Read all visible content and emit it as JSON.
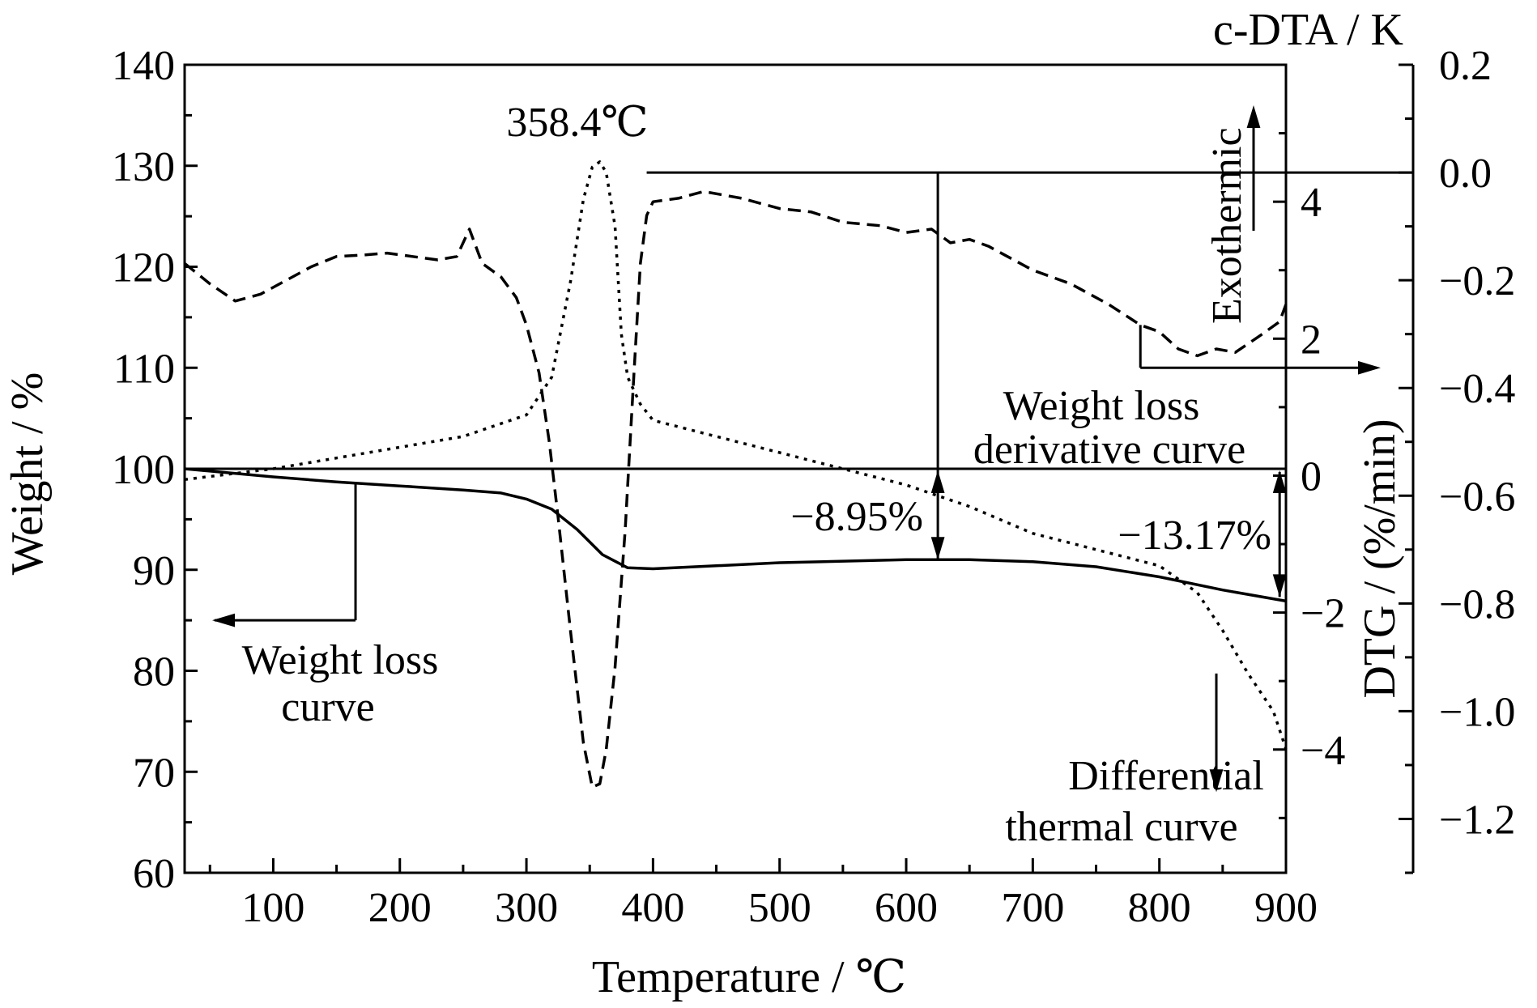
{
  "chart_data": {
    "type": "line",
    "x_axis": {
      "label": "Temperature  / ℃",
      "range": [
        30,
        900
      ],
      "ticks": [
        100,
        200,
        300,
        400,
        500,
        600,
        700,
        800,
        900
      ]
    },
    "y_axes": {
      "weight": {
        "label": "Weight / %",
        "side": "left",
        "range": [
          60,
          140
        ],
        "ticks": [
          60,
          70,
          80,
          90,
          100,
          110,
          120,
          130,
          140
        ]
      },
      "dtg": {
        "label": "DTG / (%/min)",
        "side": "right-inner",
        "range": [
          -5.8,
          6
        ],
        "ticks": [
          -4,
          -2,
          0,
          2,
          4
        ],
        "tick_labels": [
          "−4",
          "−2",
          "0",
          "2",
          "4"
        ]
      },
      "dta": {
        "label": "c-DTA / K",
        "side": "right-outer",
        "range": [
          -1.3,
          0.2
        ],
        "ticks": [
          -1.2,
          -1.0,
          -0.8,
          -0.6,
          -0.4,
          -0.2,
          0.0,
          0.2
        ],
        "tick_labels": [
          "−1.2",
          "−1.0",
          "−0.8",
          "−0.6",
          "−0.4",
          "−0.2",
          "0.0",
          "0.2"
        ]
      }
    },
    "series": [
      {
        "axis": "weight",
        "style": "solid",
        "points": [
          [
            30,
            100
          ],
          [
            100,
            99.2
          ],
          [
            150,
            98.7
          ],
          [
            200,
            98.3
          ],
          [
            250,
            97.9
          ],
          [
            280,
            97.6
          ],
          [
            300,
            97.0
          ],
          [
            320,
            96.0
          ],
          [
            340,
            94.0
          ],
          [
            360,
            91.5
          ],
          [
            380,
            90.2
          ],
          [
            400,
            90.1
          ],
          [
            450,
            90.4
          ],
          [
            500,
            90.7
          ],
          [
            600,
            91.0
          ],
          [
            650,
            91.0
          ],
          [
            700,
            90.8
          ],
          [
            750,
            90.3
          ],
          [
            800,
            89.3
          ],
          [
            850,
            88.0
          ],
          [
            900,
            86.9
          ]
        ]
      },
      {
        "axis": "dtg",
        "style": "dashed",
        "points": [
          [
            30,
            3.1
          ],
          [
            50,
            2.8
          ],
          [
            70,
            2.55
          ],
          [
            90,
            2.65
          ],
          [
            110,
            2.85
          ],
          [
            130,
            3.05
          ],
          [
            150,
            3.2
          ],
          [
            170,
            3.22
          ],
          [
            190,
            3.25
          ],
          [
            210,
            3.2
          ],
          [
            230,
            3.15
          ],
          [
            245,
            3.2
          ],
          [
            255,
            3.6
          ],
          [
            265,
            3.1
          ],
          [
            280,
            2.9
          ],
          [
            292,
            2.6
          ],
          [
            300,
            2.2
          ],
          [
            310,
            1.5
          ],
          [
            318,
            0.5
          ],
          [
            325,
            -0.6
          ],
          [
            335,
            -2.3
          ],
          [
            345,
            -3.9
          ],
          [
            352,
            -4.55
          ],
          [
            358,
            -4.5
          ],
          [
            363,
            -4.0
          ],
          [
            370,
            -2.8
          ],
          [
            378,
            -0.8
          ],
          [
            385,
            1.5
          ],
          [
            390,
            3.1
          ],
          [
            395,
            3.8
          ],
          [
            400,
            4.0
          ],
          [
            420,
            4.05
          ],
          [
            440,
            4.15
          ],
          [
            470,
            4.05
          ],
          [
            500,
            3.9
          ],
          [
            525,
            3.85
          ],
          [
            550,
            3.7
          ],
          [
            580,
            3.65
          ],
          [
            600,
            3.55
          ],
          [
            620,
            3.6
          ],
          [
            635,
            3.4
          ],
          [
            650,
            3.45
          ],
          [
            665,
            3.35
          ],
          [
            700,
            3.0
          ],
          [
            730,
            2.8
          ],
          [
            760,
            2.5
          ],
          [
            785,
            2.2
          ],
          [
            800,
            2.1
          ],
          [
            815,
            1.85
          ],
          [
            830,
            1.75
          ],
          [
            845,
            1.85
          ],
          [
            860,
            1.8
          ],
          [
            880,
            2.05
          ],
          [
            895,
            2.25
          ],
          [
            900,
            2.5
          ]
        ]
      },
      {
        "axis": "dta",
        "style": "dotted",
        "points": [
          [
            30,
            -0.57
          ],
          [
            100,
            -0.55
          ],
          [
            150,
            -0.53
          ],
          [
            200,
            -0.51
          ],
          [
            250,
            -0.49
          ],
          [
            300,
            -0.45
          ],
          [
            320,
            -0.38
          ],
          [
            335,
            -0.2
          ],
          [
            345,
            -0.05
          ],
          [
            352,
            0.01
          ],
          [
            358,
            0.02
          ],
          [
            363,
            0.0
          ],
          [
            370,
            -0.1
          ],
          [
            375,
            -0.3
          ],
          [
            380,
            -0.38
          ],
          [
            390,
            -0.43
          ],
          [
            400,
            -0.46
          ],
          [
            450,
            -0.49
          ],
          [
            500,
            -0.52
          ],
          [
            550,
            -0.55
          ],
          [
            600,
            -0.58
          ],
          [
            650,
            -0.62
          ],
          [
            700,
            -0.67
          ],
          [
            750,
            -0.7
          ],
          [
            800,
            -0.73
          ],
          [
            830,
            -0.78
          ],
          [
            850,
            -0.85
          ],
          [
            870,
            -0.93
          ],
          [
            890,
            -1.0
          ],
          [
            900,
            -1.07
          ]
        ]
      }
    ],
    "reference_lines": [
      {
        "axis": "weight",
        "value": 100,
        "from_x": 30,
        "to_x": 900
      },
      {
        "axis": "dta",
        "value": 0.0,
        "from_x": 395,
        "to_x": 1005
      }
    ],
    "annotations": {
      "peak_label": "358.4℃",
      "loss1": "−8.95%",
      "loss2": "−13.17%",
      "weight_loss_curve": [
        "Weight loss",
        "curve"
      ],
      "dtg_curve": [
        "Weight loss",
        "derivative curve"
      ],
      "dta_curve": [
        "Differential",
        "thermal  curve"
      ],
      "exothermic": "Exothermic"
    }
  }
}
